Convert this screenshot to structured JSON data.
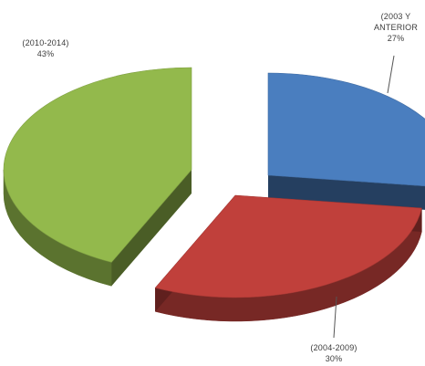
{
  "chart_data": {
    "type": "pie",
    "style": "3d-exploded",
    "categories": [
      "(2003 Y ANTERIOR)",
      "(2004-2009)",
      "(2010-2014)"
    ],
    "values": [
      27,
      30,
      43
    ],
    "unit": "%",
    "colors": [
      "#4a7ebf",
      "#c0403b",
      "#93b94c"
    ],
    "data_labels": [
      {
        "lines": [
          "(2003 Y",
          "ANTERIOR",
          "27%"
        ]
      },
      {
        "lines": [
          "(2004-2009)",
          "30%"
        ]
      },
      {
        "lines": [
          "(2010-2014)",
          "43%"
        ]
      }
    ],
    "legend": "none",
    "grid": false
  }
}
